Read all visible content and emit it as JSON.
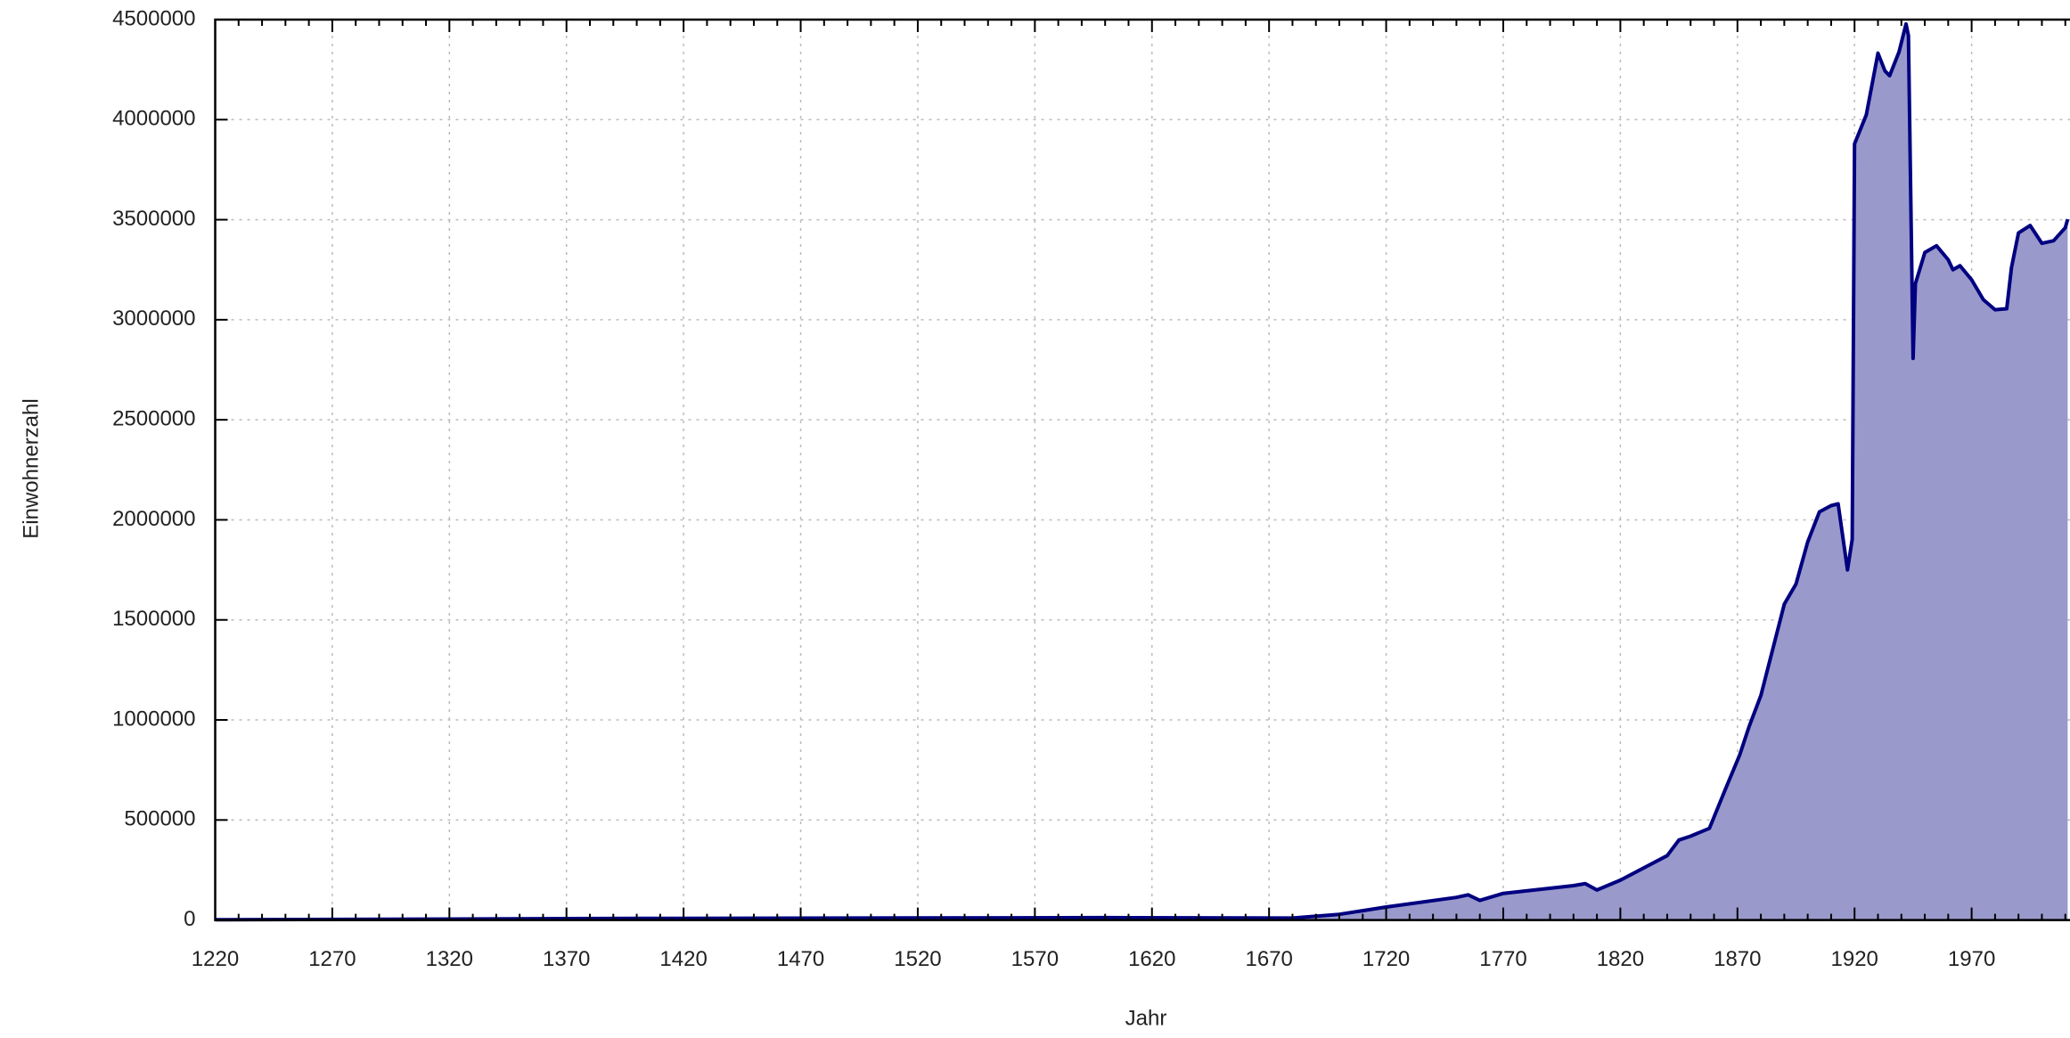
{
  "chart_data": {
    "type": "area",
    "xlabel": "Jahr",
    "ylabel": "Einwohnerzahl",
    "x": [
      1220,
      1400,
      1600,
      1680,
      1700,
      1720,
      1750,
      1755,
      1760,
      1770,
      1800,
      1805,
      1810,
      1820,
      1840,
      1845,
      1850,
      1858,
      1865,
      1871,
      1875,
      1880,
      1890,
      1895,
      1900,
      1905,
      1910,
      1913,
      1917,
      1919,
      1920,
      1925,
      1930,
      1933,
      1935,
      1939,
      1942,
      1943,
      1945,
      1946,
      1950,
      1955,
      1960,
      1962,
      1965,
      1970,
      1975,
      1980,
      1985,
      1987,
      1990,
      1995,
      2000,
      2005,
      2010,
      2011
    ],
    "series": [
      {
        "name": "Einwohnerzahl",
        "color": "#000080",
        "fill": "#9999cc",
        "values": [
          1200,
          8000,
          12000,
          10000,
          28500,
          65000,
          113000,
          126000,
          98000,
          133000,
          172000,
          182000,
          150000,
          199000,
          322000,
          400000,
          419000,
          458000,
          658000,
          826000,
          967000,
          1122000,
          1579000,
          1679000,
          1889000,
          2040000,
          2071000,
          2080000,
          1750000,
          1903000,
          3879000,
          4024000,
          4332000,
          4243000,
          4220000,
          4338000,
          4478000,
          4420000,
          2807000,
          3180000,
          3336000,
          3370000,
          3300000,
          3250000,
          3270000,
          3200000,
          3100000,
          3050000,
          3055000,
          3260000,
          3434000,
          3471000,
          3382000,
          3395000,
          3460000,
          3502000
        ]
      }
    ],
    "xlim": [
      1220,
      2012
    ],
    "ylim": [
      0,
      4500000
    ],
    "xticks": [
      1220,
      1270,
      1320,
      1370,
      1420,
      1470,
      1520,
      1570,
      1620,
      1670,
      1720,
      1770,
      1820,
      1870,
      1920,
      1970
    ],
    "yticks": [
      0,
      500000,
      1000000,
      1500000,
      2000000,
      2500000,
      3000000,
      3500000,
      4000000,
      4500000
    ],
    "grid": true
  }
}
